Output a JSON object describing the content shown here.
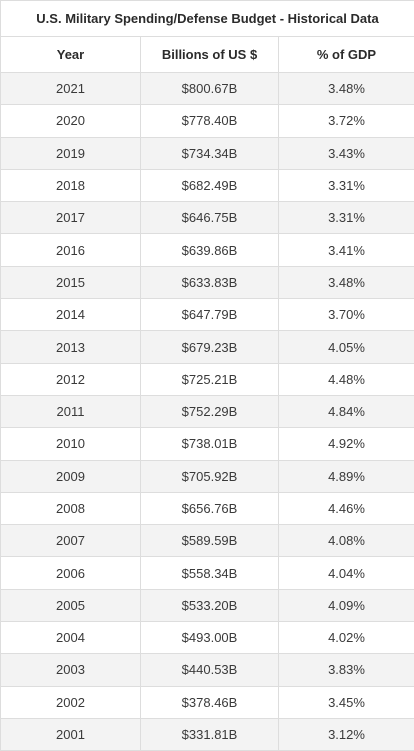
{
  "chart_data": {
    "type": "table",
    "title": "U.S. Military Spending/Defense Budget - Historical Data",
    "columns": [
      "Year",
      "Billions of US $",
      "% of GDP"
    ],
    "rows": [
      [
        "2021",
        "$800.67B",
        "3.48%"
      ],
      [
        "2020",
        "$778.40B",
        "3.72%"
      ],
      [
        "2019",
        "$734.34B",
        "3.43%"
      ],
      [
        "2018",
        "$682.49B",
        "3.31%"
      ],
      [
        "2017",
        "$646.75B",
        "3.31%"
      ],
      [
        "2016",
        "$639.86B",
        "3.41%"
      ],
      [
        "2015",
        "$633.83B",
        "3.48%"
      ],
      [
        "2014",
        "$647.79B",
        "3.70%"
      ],
      [
        "2013",
        "$679.23B",
        "4.05%"
      ],
      [
        "2012",
        "$725.21B",
        "4.48%"
      ],
      [
        "2011",
        "$752.29B",
        "4.84%"
      ],
      [
        "2010",
        "$738.01B",
        "4.92%"
      ],
      [
        "2009",
        "$705.92B",
        "4.89%"
      ],
      [
        "2008",
        "$656.76B",
        "4.46%"
      ],
      [
        "2007",
        "$589.59B",
        "4.08%"
      ],
      [
        "2006",
        "$558.34B",
        "4.04%"
      ],
      [
        "2005",
        "$533.20B",
        "4.09%"
      ],
      [
        "2004",
        "$493.00B",
        "4.02%"
      ],
      [
        "2003",
        "$440.53B",
        "3.83%"
      ],
      [
        "2002",
        "$378.46B",
        "3.45%"
      ],
      [
        "2001",
        "$331.81B",
        "3.12%"
      ]
    ]
  }
}
